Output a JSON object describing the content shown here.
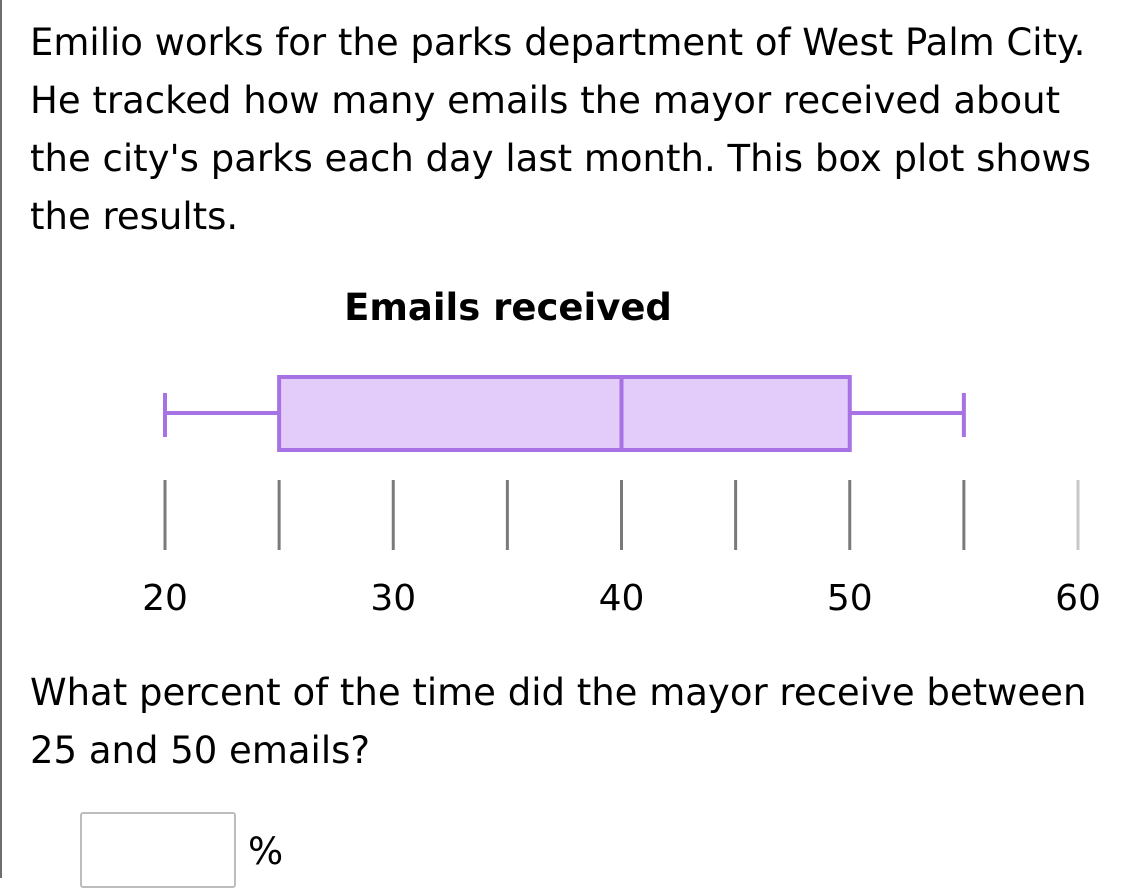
{
  "problem": {
    "intro": "Emilio works for the parks department of West Palm City. He tracked how many emails the mayor received about the city's parks each day last month. This box plot shows the results.",
    "question": "What percent of the time did the mayor receive between 25 and 50 emails?",
    "answer_value": "",
    "answer_unit": "%"
  },
  "chart_data": {
    "type": "boxplot",
    "title": "Emails received",
    "min": 20,
    "q1": 25,
    "median": 40,
    "q3": 50,
    "max": 55,
    "axis": {
      "min": 20,
      "max": 60,
      "tick_step": 5,
      "labels": [
        "20",
        "30",
        "40",
        "50",
        "60"
      ],
      "label_values": [
        20,
        30,
        40,
        50,
        60
      ]
    },
    "colors": {
      "box_fill": "#e3ccfa",
      "box_stroke": "#a672e4",
      "axis": "#7a7a7a"
    }
  }
}
